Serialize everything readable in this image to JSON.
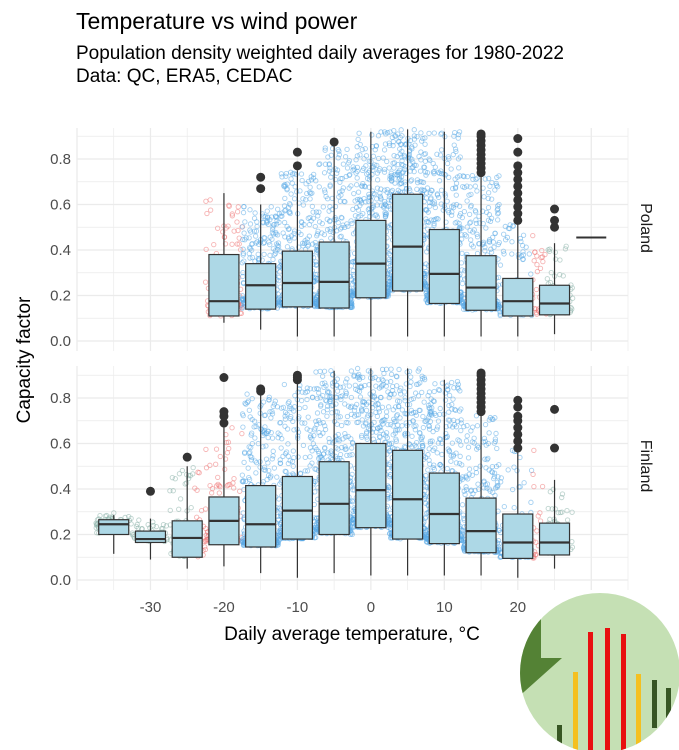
{
  "title": "Temperature vs wind power",
  "subtitle_lines": [
    "Population density weighted daily averages for 1980-2022",
    "Data: QC, ERA5, CEDAC"
  ],
  "chart_data": {
    "type": "boxplot",
    "xlabel": "Daily average temperature, °C",
    "ylabel": "Capacity factor",
    "xlim": [
      -40,
      35
    ],
    "ylim": [
      0,
      0.93
    ],
    "x_ticks": [
      -30,
      -20,
      -10,
      0,
      10,
      20
    ],
    "x_tick_labels": [
      "-30",
      "-20",
      "-10",
      "0",
      "10",
      "20"
    ],
    "y_ticks": [
      0,
      0.2,
      0.4,
      0.6,
      0.8
    ],
    "y_tick_labels": [
      "0.0",
      "0.2",
      "0.4",
      "0.6",
      "0.8"
    ],
    "grid": true,
    "colors": {
      "box_fill": "#add8e6",
      "box_line": "#333333",
      "points_main": "#5aa9e6",
      "points_edge": "#ee7777",
      "points_extreme": "#88b0a8",
      "outlier": "#333333"
    },
    "panels": [
      {
        "name": "Poland",
        "boxes": [
          {
            "x": -20,
            "min": 0.08,
            "q1": 0.11,
            "median": 0.175,
            "q3": 0.38,
            "max": 0.65,
            "outliers": []
          },
          {
            "x": -15,
            "min": 0.05,
            "q1": 0.14,
            "median": 0.245,
            "q3": 0.34,
            "max": 0.6,
            "outliers": [
              0.67,
              0.72
            ]
          },
          {
            "x": -10,
            "min": 0.02,
            "q1": 0.15,
            "median": 0.255,
            "q3": 0.395,
            "max": 0.75,
            "outliers": [
              0.77,
              0.83
            ]
          },
          {
            "x": -5,
            "min": 0.02,
            "q1": 0.145,
            "median": 0.26,
            "q3": 0.435,
            "max": 0.86,
            "outliers": [
              0.875
            ]
          },
          {
            "x": 0,
            "min": 0.02,
            "q1": 0.19,
            "median": 0.34,
            "q3": 0.53,
            "max": 0.92,
            "outliers": []
          },
          {
            "x": 5,
            "min": 0.02,
            "q1": 0.22,
            "median": 0.415,
            "q3": 0.645,
            "max": 0.93,
            "outliers": []
          },
          {
            "x": 10,
            "min": 0.02,
            "q1": 0.165,
            "median": 0.295,
            "q3": 0.49,
            "max": 0.92,
            "outliers": []
          },
          {
            "x": 15,
            "min": 0.02,
            "q1": 0.135,
            "median": 0.235,
            "q3": 0.375,
            "max": 0.73,
            "outliers": [
              0.74,
              0.76,
              0.78,
              0.8,
              0.82,
              0.84,
              0.86,
              0.88,
              0.9,
              0.91
            ]
          },
          {
            "x": 20,
            "min": 0.02,
            "q1": 0.11,
            "median": 0.175,
            "q3": 0.275,
            "max": 0.52,
            "outliers": [
              0.53,
              0.56,
              0.59,
              0.62,
              0.65,
              0.68,
              0.71,
              0.74,
              0.77,
              0.83,
              0.89
            ]
          },
          {
            "x": 25,
            "min": 0.03,
            "q1": 0.115,
            "median": 0.165,
            "q3": 0.245,
            "max": 0.43,
            "outliers": [
              0.5,
              0.53,
              0.58
            ]
          },
          {
            "x": 30,
            "min": 0.455,
            "q1": 0.455,
            "median": 0.455,
            "q3": 0.455,
            "max": 0.455,
            "outliers": []
          }
        ]
      },
      {
        "name": "Finland",
        "boxes": [
          {
            "x": -35,
            "min": 0.115,
            "q1": 0.2,
            "median": 0.245,
            "q3": 0.265,
            "max": 0.285,
            "outliers": []
          },
          {
            "x": -30,
            "min": 0.09,
            "q1": 0.165,
            "median": 0.18,
            "q3": 0.215,
            "max": 0.27,
            "outliers": [
              0.39
            ]
          },
          {
            "x": -25,
            "min": 0.05,
            "q1": 0.1,
            "median": 0.185,
            "q3": 0.26,
            "max": 0.5,
            "outliers": [
              0.54
            ]
          },
          {
            "x": -20,
            "min": 0.06,
            "q1": 0.155,
            "median": 0.26,
            "q3": 0.365,
            "max": 0.68,
            "outliers": [
              0.69,
              0.72,
              0.74,
              0.89
            ]
          },
          {
            "x": -15,
            "min": 0.03,
            "q1": 0.145,
            "median": 0.245,
            "q3": 0.415,
            "max": 0.82,
            "outliers": [
              0.83,
              0.84
            ]
          },
          {
            "x": -10,
            "min": 0.01,
            "q1": 0.18,
            "median": 0.305,
            "q3": 0.455,
            "max": 0.87,
            "outliers": [
              0.88,
              0.89,
              0.9
            ]
          },
          {
            "x": -5,
            "min": 0.03,
            "q1": 0.2,
            "median": 0.335,
            "q3": 0.52,
            "max": 0.92,
            "outliers": []
          },
          {
            "x": 0,
            "min": 0.02,
            "q1": 0.23,
            "median": 0.395,
            "q3": 0.6,
            "max": 0.93,
            "outliers": []
          },
          {
            "x": 5,
            "min": 0.02,
            "q1": 0.18,
            "median": 0.355,
            "q3": 0.57,
            "max": 0.93,
            "outliers": []
          },
          {
            "x": 10,
            "min": 0.02,
            "q1": 0.16,
            "median": 0.29,
            "q3": 0.47,
            "max": 0.88,
            "outliers": []
          },
          {
            "x": 15,
            "min": 0.02,
            "q1": 0.12,
            "median": 0.215,
            "q3": 0.36,
            "max": 0.73,
            "outliers": [
              0.74,
              0.76,
              0.78,
              0.8,
              0.82,
              0.84,
              0.86,
              0.88,
              0.9,
              0.91
            ]
          },
          {
            "x": 20,
            "min": 0.01,
            "q1": 0.095,
            "median": 0.165,
            "q3": 0.29,
            "max": 0.57,
            "outliers": [
              0.58,
              0.61,
              0.64,
              0.67,
              0.7,
              0.72,
              0.76,
              0.79
            ]
          },
          {
            "x": 25,
            "min": 0.05,
            "q1": 0.11,
            "median": 0.165,
            "q3": 0.25,
            "max": 0.44,
            "outliers": [
              0.58,
              0.75
            ]
          }
        ]
      }
    ]
  }
}
